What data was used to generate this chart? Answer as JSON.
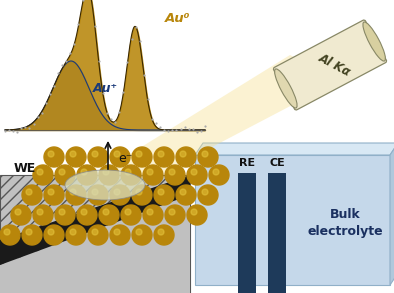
{
  "bg_color": "#ffffff",
  "electrolyte_box_color": "#c5d8ea",
  "electrolyte_top_color": "#d8e8f4",
  "electrolyte_right_color": "#b0c8dc",
  "electrode_color": "#1e3a5a",
  "RE_CE_labels": [
    "RE",
    "CE"
  ],
  "bulk_label": [
    "Bulk",
    "electrolyte"
  ],
  "WE_label": "WE",
  "e_label": "e⁻",
  "Al_label": "Al Kα",
  "Au_plus_label": "Au⁺",
  "Au0_label": "Au⁰",
  "gold_color": "#b8860b",
  "gold_highlight": "#d4a820",
  "gold_shadow": "#8a6008",
  "blue_peak_color": "#1a3a7a",
  "beam_color": "#f5e090",
  "tube_fill": "#f0ead0",
  "tube_edge": "#888866",
  "hatch_color": "#888888",
  "substrate_color": "#c0c0c0",
  "diag_color": "#1a1a1a"
}
